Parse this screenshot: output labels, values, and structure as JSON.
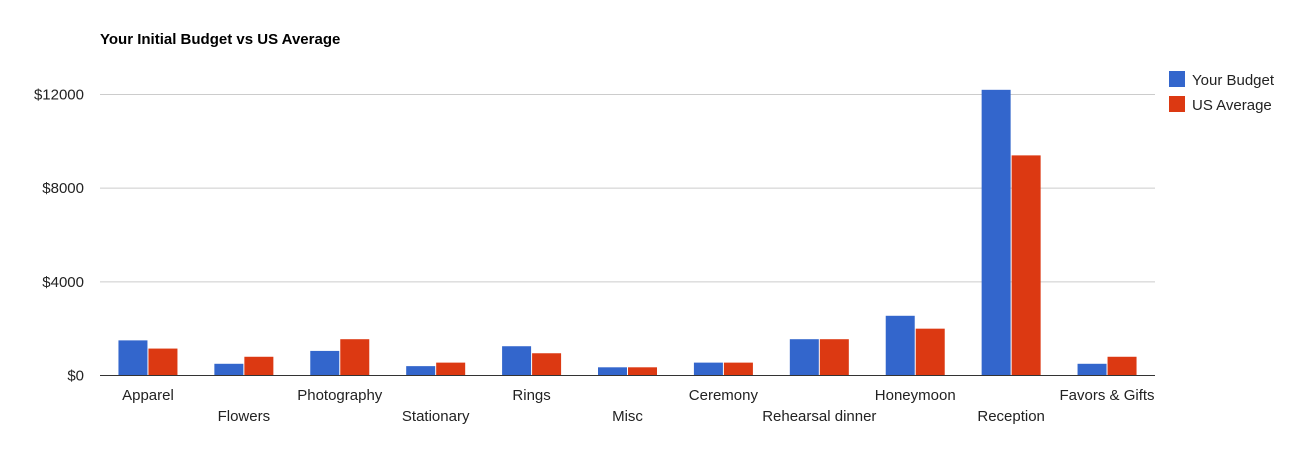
{
  "chart_data": {
    "type": "bar",
    "title": "Your Initial Budget vs US Average",
    "xlabel": "",
    "ylabel": "",
    "categories": [
      "Apparel",
      "Flowers",
      "Photography",
      "Stationary",
      "Rings",
      "Misc",
      "Ceremony",
      "Rehearsal dinner",
      "Honeymoon",
      "Reception",
      "Favors & Gifts"
    ],
    "series": [
      {
        "name": "Your Budget",
        "color": "#3366cc",
        "values": [
          1500,
          500,
          1050,
          400,
          1250,
          350,
          550,
          1550,
          2550,
          12200,
          500
        ]
      },
      {
        "name": "US Average",
        "color": "#dc3912",
        "values": [
          1150,
          800,
          1550,
          550,
          950,
          350,
          550,
          1550,
          2000,
          9400,
          800
        ]
      }
    ],
    "ylim": [
      0,
      12000
    ],
    "yticks": [
      0,
      4000,
      8000,
      12000
    ],
    "ytick_labels": [
      "$0",
      "$4000",
      "$8000",
      "$12000"
    ],
    "grid": true,
    "legend_position": "right"
  }
}
